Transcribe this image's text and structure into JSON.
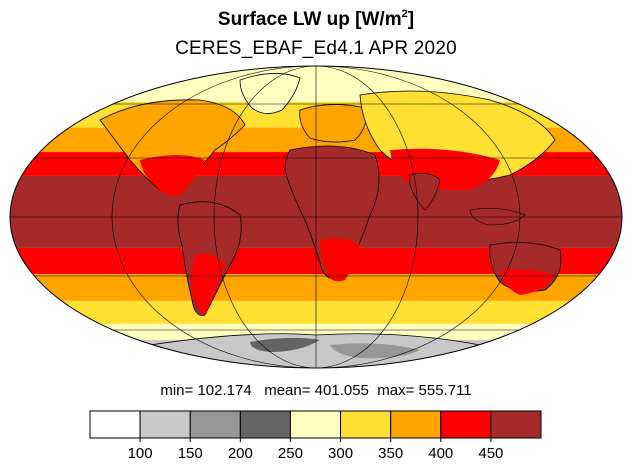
{
  "title": {
    "main": "Surface LW up [W/m",
    "sup": "2",
    "close": "]"
  },
  "subtitle": "CERES_EBAF_Ed4.1 APR 2020",
  "stats": {
    "min_label": "min=",
    "min": "102.174",
    "mean_label": "mean=",
    "mean": "401.055",
    "max_label": "max=",
    "max": "555.711"
  },
  "colorbar": {
    "colors": [
      "#ffffff",
      "#c8c8c8",
      "#969696",
      "#646464",
      "#ffffc0",
      "#ffe033",
      "#ffa500",
      "#ff0000",
      "#a52a2a"
    ],
    "ticks": [
      "100",
      "150",
      "200",
      "250",
      "300",
      "350",
      "400",
      "450"
    ]
  },
  "map": {
    "projection": "Mollweide",
    "field": "Surface LW up",
    "bands_by_latitude": [
      {
        "lat_range": [
          60,
          90
        ],
        "color_index": 4
      },
      {
        "lat_range": [
          45,
          60
        ],
        "color_index": 5
      },
      {
        "lat_range": [
          32,
          45
        ],
        "color_index": 6
      },
      {
        "lat_range": [
          20,
          32
        ],
        "color_index": 7
      },
      {
        "lat_range": [
          -15,
          20
        ],
        "color_index": 8
      },
      {
        "lat_range": [
          -28,
          -15
        ],
        "color_index": 7
      },
      {
        "lat_range": [
          -42,
          -28
        ],
        "color_index": 6
      },
      {
        "lat_range": [
          -55,
          -42
        ],
        "color_index": 5
      },
      {
        "lat_range": [
          -65,
          -55
        ],
        "color_index": 4
      },
      {
        "lat_range": [
          -90,
          -65
        ],
        "color_index": 1
      }
    ]
  }
}
